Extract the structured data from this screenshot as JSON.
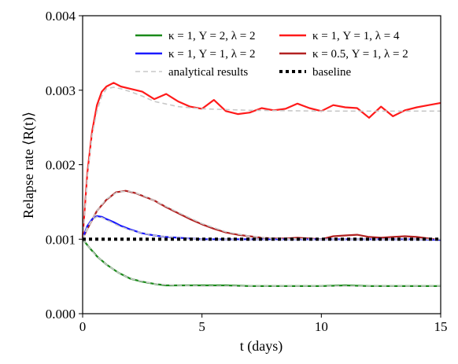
{
  "chart_data": {
    "type": "line",
    "xlabel": "t (days)",
    "ylabel": "Relapse rate ⟨R(t)⟩",
    "xlim": [
      0,
      15
    ],
    "ylim": [
      0,
      0.004
    ],
    "x_ticks": [
      "0",
      "5",
      "10",
      "15"
    ],
    "y_ticks": [
      "0.000",
      "0.001",
      "0.002",
      "0.003",
      "0.004"
    ],
    "legend_placement": "top (two columns)",
    "grid": false,
    "legend": [
      {
        "label": "κ = 1, Y = 2, λ = 2",
        "color": "#1a8a1a",
        "style": "solid"
      },
      {
        "label": "κ = 1, Y = 1, λ = 4",
        "color": "#ff1a1a",
        "style": "solid"
      },
      {
        "label": "κ = 1, Y = 1, λ = 2",
        "color": "#1a1aff",
        "style": "solid"
      },
      {
        "label": "κ = 0.5, Y = 1, λ = 2",
        "color": "#b22222",
        "style": "solid"
      },
      {
        "label": "analytical results",
        "color": "#c8c8c8",
        "style": "dashed"
      },
      {
        "label": "baseline",
        "color": "#000000",
        "style": "dotted"
      }
    ],
    "series": [
      {
        "name": "κ = 1, Y = 1, λ = 4",
        "color": "#ff1a1a",
        "x": [
          0,
          0.2,
          0.4,
          0.6,
          0.8,
          1.0,
          1.3,
          1.6,
          2.0,
          2.5,
          3.0,
          3.5,
          4.0,
          4.5,
          5.0,
          5.5,
          6.0,
          6.5,
          7.0,
          7.5,
          8.0,
          8.5,
          9.0,
          9.5,
          10.0,
          10.5,
          11.0,
          11.5,
          12.0,
          12.5,
          13.0,
          13.5,
          14.0,
          14.5,
          15.0
        ],
        "y": [
          0.00102,
          0.0019,
          0.00245,
          0.0028,
          0.00298,
          0.00305,
          0.0031,
          0.00305,
          0.00302,
          0.00298,
          0.00288,
          0.00295,
          0.00285,
          0.00278,
          0.00275,
          0.00287,
          0.00272,
          0.00268,
          0.0027,
          0.00276,
          0.00273,
          0.00275,
          0.00282,
          0.00276,
          0.00272,
          0.0028,
          0.00277,
          0.00276,
          0.00263,
          0.00278,
          0.00265,
          0.00273,
          0.00277,
          0.0028,
          0.00283
        ]
      },
      {
        "name": "κ = 0.5, Y = 1, λ = 2",
        "color": "#b22222",
        "x": [
          0,
          0.3,
          0.6,
          1.0,
          1.4,
          1.8,
          2.2,
          2.6,
          3.0,
          3.5,
          4.0,
          4.5,
          5.0,
          5.5,
          6.0,
          6.5,
          7.0,
          7.5,
          8.0,
          8.5,
          9.0,
          9.5,
          10.0,
          10.5,
          11.0,
          11.5,
          12.0,
          12.5,
          13.0,
          13.5,
          14.0,
          14.5,
          15.0
        ],
        "y": [
          0.00101,
          0.0012,
          0.00138,
          0.00153,
          0.00163,
          0.00165,
          0.00162,
          0.00157,
          0.00152,
          0.00143,
          0.00135,
          0.00127,
          0.0012,
          0.00114,
          0.00109,
          0.00106,
          0.00104,
          0.00102,
          0.00101,
          0.00101,
          0.00102,
          0.00101,
          0.001,
          0.00104,
          0.00105,
          0.00106,
          0.00103,
          0.00102,
          0.00103,
          0.00104,
          0.00103,
          0.00101,
          0.00099
        ]
      },
      {
        "name": "κ = 1, Y = 1, λ = 2",
        "color": "#1a1aff",
        "x": [
          0,
          0.2,
          0.4,
          0.6,
          0.8,
          1.0,
          1.3,
          1.6,
          2.0,
          2.5,
          3.0,
          3.5,
          4.0,
          4.5,
          5.0,
          6.0,
          7.0,
          8.0,
          9.0,
          10.0,
          11.0,
          12.0,
          13.0,
          14.0,
          15.0
        ],
        "y": [
          0.00101,
          0.00118,
          0.00127,
          0.00131,
          0.0013,
          0.00127,
          0.00123,
          0.00118,
          0.00113,
          0.00108,
          0.00105,
          0.00103,
          0.00102,
          0.00101,
          0.001,
          0.001,
          0.001,
          0.001,
          0.001,
          0.001,
          0.001,
          0.001,
          0.001,
          0.001,
          0.00099
        ]
      },
      {
        "name": "κ = 1, Y = 2, λ = 2",
        "color": "#1a8a1a",
        "x": [
          0,
          0.3,
          0.6,
          1.0,
          1.5,
          2.0,
          2.5,
          3.0,
          3.5,
          4.0,
          5.0,
          6.0,
          7.0,
          8.0,
          9.0,
          10.0,
          11.0,
          12.0,
          13.0,
          14.0,
          15.0
        ],
        "y": [
          0.001,
          0.00088,
          0.00077,
          0.00066,
          0.00055,
          0.00047,
          0.00043,
          0.0004,
          0.00038,
          0.00038,
          0.00038,
          0.00038,
          0.00037,
          0.00037,
          0.00037,
          0.00037,
          0.00038,
          0.00037,
          0.00037,
          0.00037,
          0.00037
        ]
      }
    ],
    "analytical": [
      {
        "x": [
          0,
          0.2,
          0.4,
          0.6,
          0.8,
          1.0,
          1.3,
          1.6,
          2.0,
          2.5,
          3.0,
          4.0,
          5.0,
          7.0,
          10.0,
          15.0
        ],
        "y": [
          0.001,
          0.00185,
          0.0024,
          0.00272,
          0.00292,
          0.00302,
          0.00304,
          0.00302,
          0.00298,
          0.00292,
          0.00285,
          0.00278,
          0.00275,
          0.00273,
          0.00272,
          0.00272
        ]
      },
      {
        "x": [
          0,
          0.3,
          0.6,
          1.0,
          1.5,
          2.0,
          2.5,
          3.0,
          4.0,
          5.0,
          6.0,
          7.0,
          8.0,
          10.0,
          12.0,
          15.0
        ],
        "y": [
          0.001,
          0.0012,
          0.00138,
          0.00154,
          0.00164,
          0.00164,
          0.00159,
          0.00152,
          0.00136,
          0.00121,
          0.0011,
          0.00104,
          0.00101,
          0.001,
          0.001,
          0.001
        ]
      },
      {
        "x": [
          0,
          0.2,
          0.4,
          0.6,
          0.8,
          1.0,
          1.5,
          2.0,
          3.0,
          4.0,
          5.0,
          15.0
        ],
        "y": [
          0.001,
          0.00117,
          0.00126,
          0.0013,
          0.00129,
          0.00126,
          0.00118,
          0.00112,
          0.00105,
          0.00102,
          0.001,
          0.001
        ]
      },
      {
        "x": [
          0,
          0.5,
          1.0,
          1.5,
          2.0,
          3.0,
          4.0,
          5.0,
          15.0
        ],
        "y": [
          0.001,
          0.0008,
          0.00066,
          0.00055,
          0.00047,
          0.0004,
          0.00038,
          0.00037,
          0.00037
        ]
      }
    ],
    "baseline": {
      "x": [
        0,
        15
      ],
      "y": [
        0.001,
        0.001
      ]
    }
  }
}
